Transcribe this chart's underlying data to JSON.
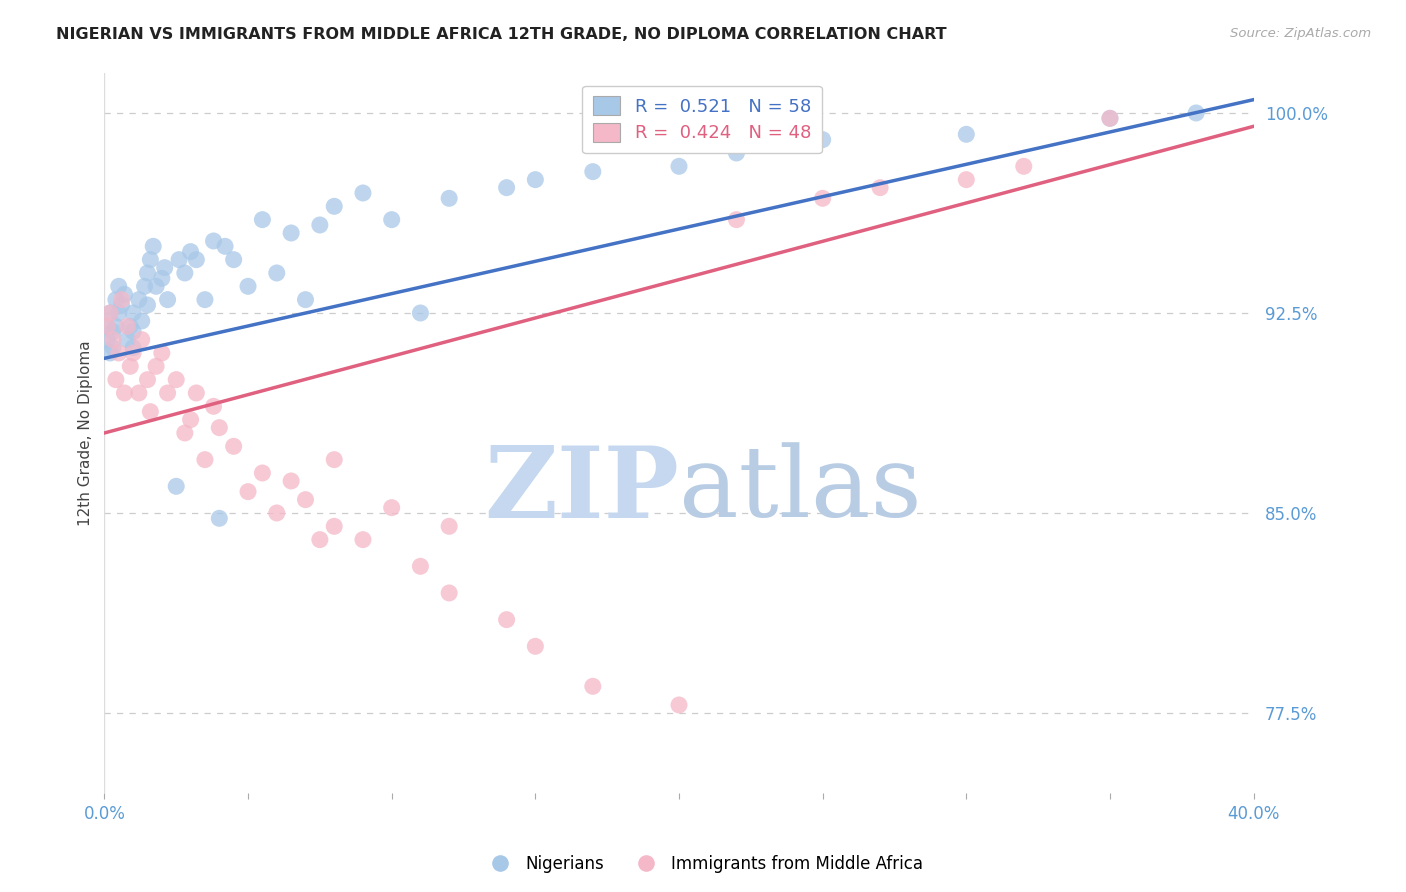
{
  "title": "NIGERIAN VS IMMIGRANTS FROM MIDDLE AFRICA 12TH GRADE, NO DIPLOMA CORRELATION CHART",
  "source": "Source: ZipAtlas.com",
  "ylabel": "12th Grade, No Diploma",
  "xlim": [
    0.0,
    0.4
  ],
  "ylim": [
    0.745,
    1.015
  ],
  "yticks_right": [
    1.0,
    0.925,
    0.85,
    0.775
  ],
  "ytick_labels_right": [
    "100.0%",
    "92.5%",
    "85.0%",
    "77.5%"
  ],
  "blue_R": 0.521,
  "blue_N": 58,
  "pink_R": 0.424,
  "pink_N": 48,
  "legend_label_blue": "Nigerians",
  "legend_label_pink": "Immigrants from Middle Africa",
  "blue_color": "#A8C8E8",
  "pink_color": "#F4B8C8",
  "blue_line_color": "#4472C4",
  "pink_line_color": "#E06080",
  "blue_scatter_x": [
    0.001,
    0.001,
    0.002,
    0.002,
    0.003,
    0.003,
    0.004,
    0.004,
    0.005,
    0.005,
    0.006,
    0.007,
    0.008,
    0.009,
    0.01,
    0.01,
    0.01,
    0.012,
    0.013,
    0.014,
    0.015,
    0.015,
    0.016,
    0.017,
    0.018,
    0.02,
    0.021,
    0.022,
    0.025,
    0.026,
    0.028,
    0.03,
    0.032,
    0.035,
    0.038,
    0.04,
    0.042,
    0.045,
    0.05,
    0.055,
    0.06,
    0.065,
    0.07,
    0.075,
    0.08,
    0.09,
    0.1,
    0.11,
    0.12,
    0.14,
    0.15,
    0.17,
    0.2,
    0.22,
    0.25,
    0.3,
    0.35,
    0.38
  ],
  "blue_scatter_y": [
    0.92,
    0.915,
    0.925,
    0.91,
    0.918,
    0.912,
    0.93,
    0.92,
    0.935,
    0.925,
    0.928,
    0.932,
    0.915,
    0.92,
    0.925,
    0.918,
    0.912,
    0.93,
    0.922,
    0.935,
    0.94,
    0.928,
    0.945,
    0.95,
    0.935,
    0.938,
    0.942,
    0.93,
    0.86,
    0.945,
    0.94,
    0.948,
    0.945,
    0.93,
    0.952,
    0.848,
    0.95,
    0.945,
    0.935,
    0.96,
    0.94,
    0.955,
    0.93,
    0.958,
    0.965,
    0.97,
    0.96,
    0.925,
    0.968,
    0.972,
    0.975,
    0.978,
    0.98,
    0.985,
    0.99,
    0.992,
    0.998,
    1.0
  ],
  "pink_scatter_x": [
    0.001,
    0.002,
    0.003,
    0.004,
    0.005,
    0.006,
    0.007,
    0.008,
    0.009,
    0.01,
    0.012,
    0.013,
    0.015,
    0.016,
    0.018,
    0.02,
    0.022,
    0.025,
    0.028,
    0.03,
    0.032,
    0.035,
    0.038,
    0.04,
    0.045,
    0.05,
    0.055,
    0.06,
    0.065,
    0.07,
    0.075,
    0.08,
    0.09,
    0.1,
    0.11,
    0.12,
    0.14,
    0.15,
    0.17,
    0.2,
    0.22,
    0.25,
    0.27,
    0.3,
    0.32,
    0.35,
    0.12,
    0.08
  ],
  "pink_scatter_y": [
    0.92,
    0.925,
    0.915,
    0.9,
    0.91,
    0.93,
    0.895,
    0.92,
    0.905,
    0.91,
    0.895,
    0.915,
    0.9,
    0.888,
    0.905,
    0.91,
    0.895,
    0.9,
    0.88,
    0.885,
    0.895,
    0.87,
    0.89,
    0.882,
    0.875,
    0.858,
    0.865,
    0.85,
    0.862,
    0.855,
    0.84,
    0.845,
    0.84,
    0.852,
    0.83,
    0.82,
    0.81,
    0.8,
    0.785,
    0.778,
    0.96,
    0.968,
    0.972,
    0.975,
    0.98,
    0.998,
    0.845,
    0.87
  ],
  "background_color": "#FFFFFF",
  "grid_color": "#CCCCCC",
  "watermark_zip": "ZIP",
  "watermark_atlas": "atlas",
  "watermark_color_zip": "#C8D8F0",
  "watermark_color_atlas": "#C0D0E8"
}
